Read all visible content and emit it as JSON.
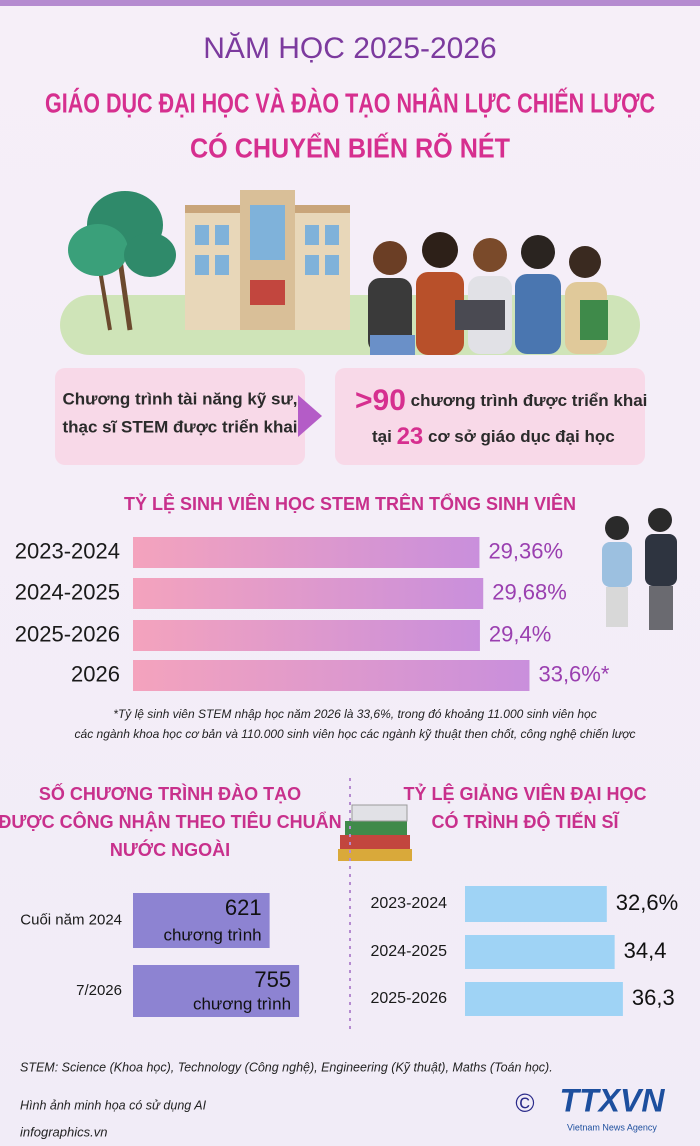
{
  "header": {
    "year": "NĂM HỌC 2025-2026",
    "headline": [
      "GIÁO DỤC ĐẠI HỌC VÀ ĐÀO TẠO NHÂN LỰC CHIẾN LƯỢC",
      "CÓ CHUYỂN BIẾN RÕ NÉT"
    ]
  },
  "highlights": {
    "left": [
      "Chương trình tài năng kỹ sư,",
      "thạc sĩ STEM được triển khai"
    ],
    "right": {
      "count": ">90",
      "count_text": "chương trình được triển khai",
      "sites_prefix": "tại",
      "sites": "23",
      "sites_text": "cơ sở giáo dục đại học"
    }
  },
  "chart_data": [
    {
      "type": "bar",
      "orientation": "horizontal",
      "title": [
        "TỶ LỆ SINH VIÊN HỌC STEM TRÊN TỔNG SINH VIÊN"
      ],
      "categories": [
        "2023-2024",
        "2024-2025",
        "2025-2026",
        "2026"
      ],
      "values": [
        29.36,
        29.68,
        29.4,
        33.6
      ],
      "value_labels": [
        "29,36%",
        "29,68%",
        "29,4%",
        "33,6%*"
      ],
      "gradient": [
        "#f4a3bd",
        "#c98fdc"
      ],
      "note": [
        "*Tỷ lệ sinh viên STEM nhập học năm 2026 là 33,6%, trong đó khoảng 11.000 sinh viên học",
        "các ngành khoa học cơ bản và 110.000 sinh viên học các ngành kỹ thuật then chốt, công nghệ chiến lược"
      ]
    },
    {
      "type": "bar",
      "orientation": "horizontal",
      "title": [
        "SỐ CHƯƠNG TRÌNH ĐÀO TẠO",
        "ĐƯỢC CÔNG NHẬN THEO TIÊU CHUẨN",
        "NƯỚC NGOÀI"
      ],
      "categories": [
        "Cuối năm 2024",
        "7/2026"
      ],
      "values": [
        621,
        755
      ],
      "unit_label": "chương trình",
      "color": "#8d83d2"
    },
    {
      "type": "bar",
      "orientation": "horizontal",
      "title": [
        "TỶ LỆ GIẢNG VIÊN ĐẠI HỌC",
        "CÓ TRÌNH ĐỘ TIẾN SĨ"
      ],
      "categories": [
        "2023-2024",
        "2024-2025",
        "2025-2026"
      ],
      "values": [
        32.6,
        34.4,
        36.3
      ],
      "value_labels": [
        "32,6%",
        "34,4",
        "36,3"
      ],
      "color": "#9fd3f5"
    }
  ],
  "footer": {
    "stem_note": "STEM: Science (Khoa học), Technology (Công nghệ), Engineering (Kỹ thuật), Maths (Toán học).",
    "ai_note": "Hình ảnh minh họa có sử dụng AI",
    "website": "infographics.vn",
    "copyright": "©",
    "logo": "TTXVN",
    "logo_sub": "Vietnam News Agency"
  }
}
